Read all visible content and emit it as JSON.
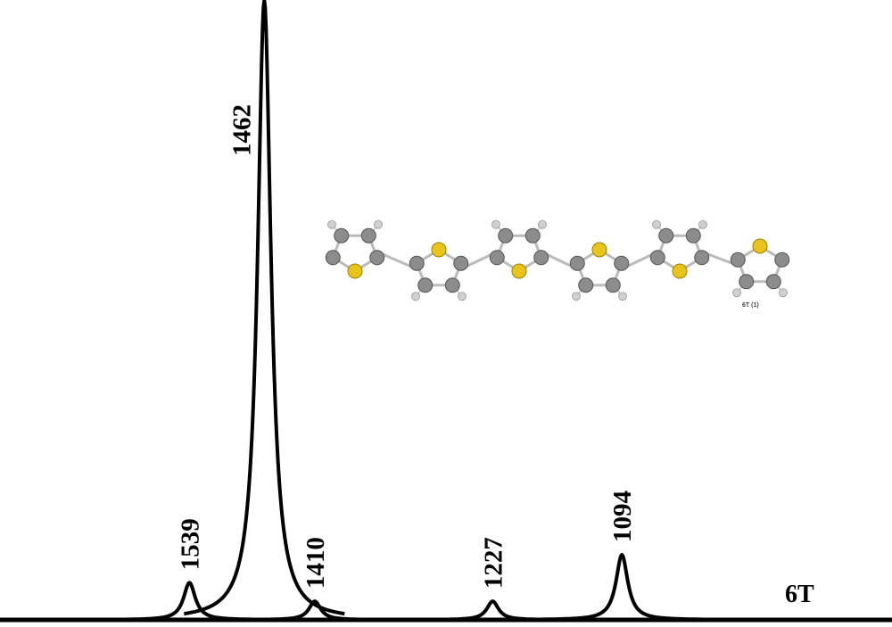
{
  "chart_data": {
    "type": "line",
    "x": [
      1539,
      1462,
      1410,
      1227,
      1094
    ],
    "values": [
      6,
      100,
      3,
      3,
      10.5
    ],
    "xlim": [
      1734,
      816
    ],
    "ylim": [
      0,
      100
    ],
    "color": "#000000",
    "series_label": "6T",
    "molecule_label": "6T (1)"
  }
}
